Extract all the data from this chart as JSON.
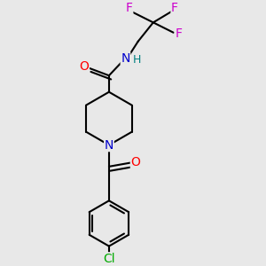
{
  "bg_color": "#e8e8e8",
  "bond_color": "#000000",
  "bond_width": 1.5,
  "atom_colors": {
    "O": "#ff0000",
    "N_amide": "#0000cc",
    "N_pipe": "#0000cc",
    "H": "#008080",
    "F": "#cc00cc",
    "Cl": "#00aa00",
    "C": "#000000"
  },
  "font_size_atoms": 10,
  "font_size_small": 9,
  "font_size_cl": 10
}
